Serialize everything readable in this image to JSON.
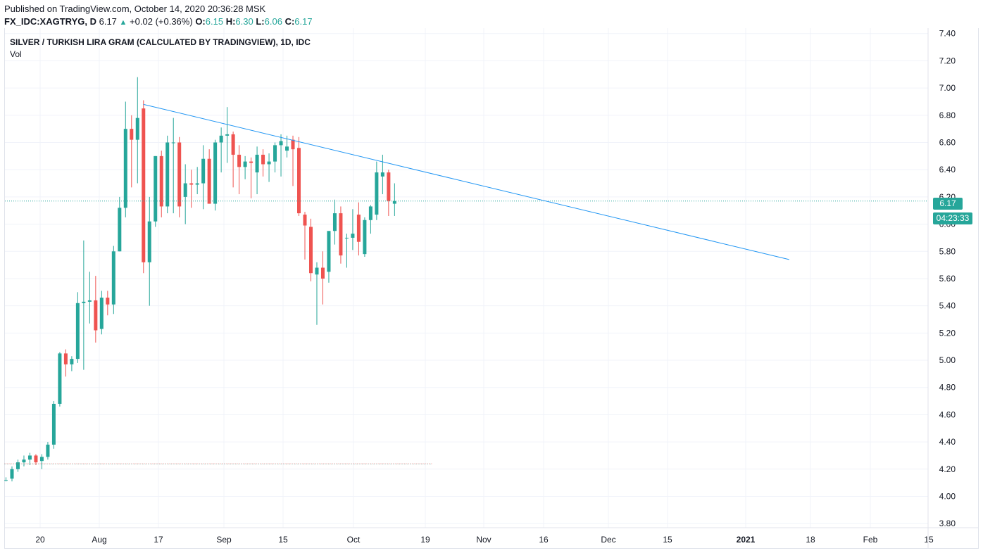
{
  "header": {
    "published": "Published on TradingView.com, October 14, 2020 20:36:28 MSK",
    "symbol": "FX_IDC:XAGTRYG, D",
    "last": "6.17",
    "arrow": "▲",
    "change": "+0.02 (+0.36%)",
    "o_label": "O:",
    "o_value": "6.15",
    "h_label": "H:",
    "h_value": "6.30",
    "l_label": "L:",
    "l_value": "6.06",
    "c_label": "C:",
    "c_value": "6.17"
  },
  "legend": {
    "title": "SILVER / TURKISH LIRA GRAM (CALCULATED BY TRADINGVIEW), 1D, IDC",
    "indicator": "Vol"
  },
  "price_badge": {
    "price": "6.17",
    "countdown": "04:23:33"
  },
  "colors": {
    "up": "#26a69a",
    "down": "#ef5350",
    "trendline": "#2196f3",
    "grid": "#f0f3fa",
    "axis_text": "#131722"
  },
  "chart_data": {
    "type": "candlestick",
    "y_axis_labels": [
      "3.80",
      "4.00",
      "4.20",
      "4.40",
      "4.60",
      "4.80",
      "5.00",
      "5.20",
      "5.40",
      "5.60",
      "5.80",
      "6.00",
      "6.20",
      "6.40",
      "6.60",
      "6.80",
      "7.00",
      "7.20",
      "7.40"
    ],
    "ylim": [
      3.77,
      7.44
    ],
    "x_axis_labels": [
      "20",
      "Aug",
      "17",
      "Sep",
      "15",
      "Oct",
      "19",
      "Nov",
      "16",
      "Dec",
      "15",
      "2021",
      "18",
      "Feb",
      "15"
    ],
    "last_price": 6.17,
    "ohlc": [
      [
        4.12,
        4.14,
        4.11,
        4.12
      ],
      [
        4.13,
        4.22,
        4.11,
        4.2
      ],
      [
        4.2,
        4.27,
        4.18,
        4.25
      ],
      [
        4.25,
        4.3,
        4.22,
        4.27
      ],
      [
        4.27,
        4.32,
        4.23,
        4.3
      ],
      [
        4.3,
        4.31,
        4.23,
        4.25
      ],
      [
        4.26,
        4.31,
        4.2,
        4.29
      ],
      [
        4.29,
        4.4,
        4.27,
        4.38
      ],
      [
        4.38,
        4.7,
        4.35,
        4.68
      ],
      [
        4.68,
        5.06,
        4.66,
        5.05
      ],
      [
        5.05,
        5.08,
        4.88,
        4.97
      ],
      [
        4.97,
        5.03,
        4.92,
        5.01
      ],
      [
        5.01,
        5.5,
        4.98,
        5.42
      ],
      [
        5.42,
        5.88,
        4.93,
        5.43
      ],
      [
        5.43,
        5.65,
        5.27,
        5.44
      ],
      [
        5.44,
        5.62,
        5.13,
        5.22
      ],
      [
        5.23,
        5.51,
        5.19,
        5.46
      ],
      [
        5.46,
        5.51,
        5.33,
        5.41
      ],
      [
        5.41,
        5.84,
        5.34,
        5.8
      ],
      [
        5.8,
        6.2,
        5.8,
        6.12
      ],
      [
        6.12,
        6.9,
        6.05,
        6.7
      ],
      [
        6.7,
        6.8,
        6.27,
        6.62
      ],
      [
        6.62,
        7.08,
        6.3,
        6.78
      ],
      [
        6.85,
        6.91,
        5.64,
        5.72
      ],
      [
        5.72,
        6.2,
        5.4,
        6.02
      ],
      [
        6.02,
        6.5,
        5.98,
        6.5
      ],
      [
        6.5,
        6.54,
        6.05,
        6.13
      ],
      [
        6.13,
        6.65,
        6.08,
        6.6
      ],
      [
        6.6,
        6.78,
        6.08,
        6.6
      ],
      [
        6.6,
        6.64,
        6.05,
        6.13
      ],
      [
        6.2,
        6.44,
        6.0,
        6.3
      ],
      [
        6.3,
        6.4,
        6.12,
        6.29
      ],
      [
        6.29,
        6.42,
        6.22,
        6.3
      ],
      [
        6.3,
        6.58,
        6.11,
        6.48
      ],
      [
        6.48,
        6.55,
        6.15,
        6.15
      ],
      [
        6.15,
        6.62,
        6.1,
        6.6
      ],
      [
        6.6,
        6.71,
        6.38,
        6.65
      ],
      [
        6.65,
        6.86,
        6.45,
        6.66
      ],
      [
        6.66,
        6.68,
        6.27,
        6.51
      ],
      [
        6.51,
        6.58,
        6.22,
        6.42
      ],
      [
        6.42,
        6.5,
        6.33,
        6.46
      ],
      [
        6.46,
        6.49,
        6.19,
        6.45
      ],
      [
        6.38,
        6.57,
        6.22,
        6.51
      ],
      [
        6.51,
        6.55,
        6.35,
        6.44
      ],
      [
        6.44,
        6.52,
        6.31,
        6.46
      ],
      [
        6.46,
        6.6,
        6.38,
        6.58
      ],
      [
        6.58,
        6.66,
        6.35,
        6.61
      ],
      [
        6.54,
        6.65,
        6.49,
        6.57
      ],
      [
        6.62,
        6.65,
        6.28,
        6.55
      ],
      [
        6.56,
        6.64,
        6.06,
        6.08
      ],
      [
        6.07,
        6.09,
        5.74,
        5.99
      ],
      [
        5.98,
        6.04,
        5.58,
        5.64
      ],
      [
        5.63,
        5.72,
        5.26,
        5.68
      ],
      [
        5.68,
        5.8,
        5.41,
        5.6
      ],
      [
        5.65,
        5.94,
        5.57,
        5.95
      ],
      [
        5.95,
        6.18,
        5.85,
        6.08
      ],
      [
        6.08,
        6.13,
        5.71,
        5.77
      ],
      [
        5.9,
        5.93,
        5.68,
        5.9
      ],
      [
        5.9,
        6.11,
        5.81,
        5.93
      ],
      [
        6.07,
        6.16,
        5.77,
        5.87
      ],
      [
        5.78,
        6.05,
        5.76,
        6.03
      ],
      [
        6.03,
        6.14,
        5.93,
        6.13
      ],
      [
        6.07,
        6.46,
        6.03,
        6.38
      ],
      [
        6.35,
        6.51,
        6.22,
        6.38
      ],
      [
        6.38,
        6.4,
        6.06,
        6.17
      ],
      [
        6.15,
        6.3,
        6.06,
        6.17
      ]
    ],
    "trendline": {
      "from": {
        "bar": 23,
        "price": 6.88
      },
      "to": {
        "bar": 131,
        "price": 5.74
      }
    },
    "support_line": {
      "from_bar": 0,
      "to_bar": 71,
      "price": 4.24
    }
  }
}
